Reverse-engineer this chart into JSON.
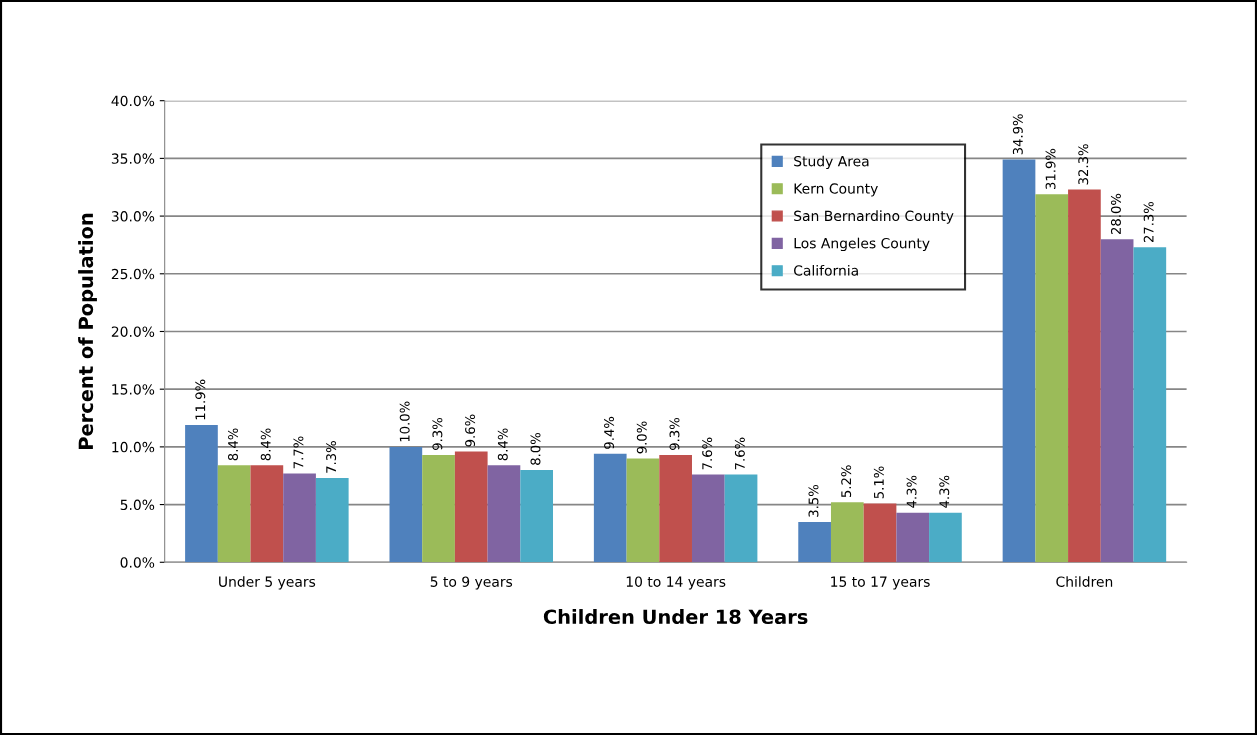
{
  "chart_data": {
    "type": "bar",
    "xlabel": "Children Under 18 Years",
    "ylabel": "Percent of Population",
    "categories": [
      "Under 5 years",
      "5 to 9 years",
      "10 to 14 years",
      "15 to 17 years",
      "Children"
    ],
    "series": [
      {
        "name": "Study Area",
        "color": "#4f81bd",
        "values": [
          11.9,
          10.0,
          9.4,
          3.5,
          34.9
        ],
        "value_labels": [
          "11.9%",
          "10.0%",
          "9.4%",
          "3.5%",
          "34.9%"
        ]
      },
      {
        "name": "Kern County",
        "color": "#9bbb59",
        "values": [
          8.4,
          9.3,
          9.0,
          5.2,
          31.9
        ],
        "value_labels": [
          "8.4%",
          "9.3%",
          "9.0%",
          "5.2%",
          "31.9%"
        ]
      },
      {
        "name": "San Bernardino County",
        "color": "#c0504d",
        "values": [
          8.4,
          9.6,
          9.3,
          5.1,
          32.3
        ],
        "value_labels": [
          "8.4%",
          "9.6%",
          "9.3%",
          "5.1%",
          "32.3%"
        ]
      },
      {
        "name": "Los Angeles County",
        "color": "#8064a2",
        "values": [
          7.7,
          8.4,
          7.6,
          4.3,
          28.0
        ],
        "value_labels": [
          "7.7%",
          "8.4%",
          "7.6%",
          "4.3%",
          "28.0%"
        ]
      },
      {
        "name": "California",
        "color": "#4bacc6",
        "values": [
          7.3,
          8.0,
          7.6,
          4.3,
          27.3
        ],
        "value_labels": [
          "7.3%",
          "8.0%",
          "7.6%",
          "4.3%",
          "27.3%"
        ]
      }
    ],
    "ylim": [
      0,
      40
    ],
    "yticks": [
      {
        "value": 0,
        "label": "0.0%"
      },
      {
        "value": 5,
        "label": "5.0%"
      },
      {
        "value": 10,
        "label": "10.0%"
      },
      {
        "value": 15,
        "label": "15.0%"
      },
      {
        "value": 20,
        "label": "20.0%"
      },
      {
        "value": 25,
        "label": "25.0%"
      },
      {
        "value": 30,
        "label": "30.0%"
      },
      {
        "value": 35,
        "label": "35.0%"
      },
      {
        "value": 40,
        "label": "40.0%"
      }
    ],
    "grid": "y",
    "legend": "top right"
  }
}
